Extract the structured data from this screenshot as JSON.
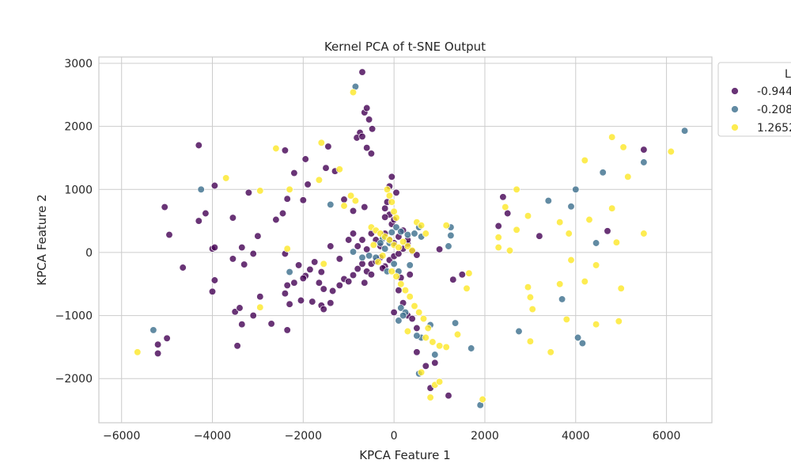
{
  "chart_data": {
    "type": "scatter",
    "title": "Kernel PCA of t-SNE Output",
    "xlabel": "KPCA Feature 1",
    "ylabel": "KPCA Feature 2",
    "xlim": [
      -6500,
      7000
    ],
    "ylim": [
      -2700,
      3100
    ],
    "xticks": [
      -6000,
      -4000,
      -2000,
      0,
      2000,
      4000,
      6000
    ],
    "xtick_labels": [
      "−6000",
      "−4000",
      "−2000",
      "0",
      "2000",
      "4000",
      "6000"
    ],
    "yticks": [
      -2000,
      -1000,
      0,
      1000,
      2000,
      3000
    ],
    "ytick_labels": [
      "−2000",
      "−1000",
      "0",
      "1000",
      "2000",
      "3000"
    ],
    "grid": true,
    "legend": {
      "title": "L",
      "placement": "top-right",
      "entries": [
        "-0.944",
        "-0.208",
        "1.2652"
      ]
    },
    "series": [
      {
        "name": "-0.944",
        "color": "#440154",
        "points": [
          [
            -700,
            2860
          ],
          [
            -650,
            2220
          ],
          [
            -600,
            2290
          ],
          [
            -550,
            2110
          ],
          [
            -750,
            1900
          ],
          [
            -820,
            1820
          ],
          [
            -700,
            1840
          ],
          [
            -600,
            1660
          ],
          [
            -500,
            1570
          ],
          [
            -480,
            1960
          ],
          [
            -4300,
            1700
          ],
          [
            -2400,
            1620
          ],
          [
            -1950,
            1480
          ],
          [
            -1450,
            1680
          ],
          [
            -2200,
            1260
          ],
          [
            -1500,
            1340
          ],
          [
            -1300,
            1290
          ],
          [
            -1900,
            1080
          ],
          [
            -3950,
            1060
          ],
          [
            -3200,
            950
          ],
          [
            -2350,
            850
          ],
          [
            -2000,
            830
          ],
          [
            -1100,
            840
          ],
          [
            -5050,
            720
          ],
          [
            -4150,
            620
          ],
          [
            -2450,
            620
          ],
          [
            -3550,
            550
          ],
          [
            -900,
            660
          ],
          [
            -650,
            720
          ],
          [
            -4300,
            500
          ],
          [
            -2600,
            520
          ],
          [
            -4950,
            280
          ],
          [
            -3000,
            260
          ],
          [
            -4000,
            60
          ],
          [
            -3950,
            80
          ],
          [
            -3350,
            80
          ],
          [
            -4650,
            -240
          ],
          [
            -3550,
            -100
          ],
          [
            -3300,
            -190
          ],
          [
            -3100,
            -20
          ],
          [
            -2400,
            -20
          ],
          [
            -2100,
            -200
          ],
          [
            -1950,
            -370
          ],
          [
            -1850,
            -270
          ],
          [
            -1750,
            -150
          ],
          [
            -1600,
            -310
          ],
          [
            -2200,
            -480
          ],
          [
            -2350,
            -520
          ],
          [
            -2000,
            -410
          ],
          [
            -1650,
            -480
          ],
          [
            -1550,
            -580
          ],
          [
            -1350,
            -610
          ],
          [
            -1200,
            -520
          ],
          [
            -1100,
            -420
          ],
          [
            -1000,
            -460
          ],
          [
            -900,
            -360
          ],
          [
            -800,
            -260
          ],
          [
            -700,
            -180
          ],
          [
            -600,
            -300
          ],
          [
            -500,
            -180
          ],
          [
            -400,
            -140
          ],
          [
            -300,
            -80
          ],
          [
            -200,
            -220
          ],
          [
            -100,
            -120
          ],
          [
            0,
            -60
          ],
          [
            100,
            -20
          ],
          [
            200,
            60
          ],
          [
            300,
            140
          ],
          [
            400,
            20
          ],
          [
            500,
            -40
          ],
          [
            -1400,
            100
          ],
          [
            -1200,
            -100
          ],
          [
            -1000,
            200
          ],
          [
            -900,
            300
          ],
          [
            -800,
            100
          ],
          [
            -700,
            200
          ],
          [
            -600,
            50
          ],
          [
            -500,
            300
          ],
          [
            -400,
            200
          ],
          [
            -300,
            100
          ],
          [
            -200,
            300
          ],
          [
            -100,
            200
          ],
          [
            0,
            150
          ],
          [
            100,
            250
          ],
          [
            200,
            350
          ],
          [
            300,
            200
          ],
          [
            -3950,
            -440
          ],
          [
            -4000,
            -620
          ],
          [
            -2950,
            -700
          ],
          [
            -2400,
            -650
          ],
          [
            -2300,
            -820
          ],
          [
            -2050,
            -760
          ],
          [
            -1800,
            -780
          ],
          [
            -1600,
            -840
          ],
          [
            -1400,
            -800
          ],
          [
            -1550,
            -900
          ],
          [
            -3500,
            -940
          ],
          [
            -3400,
            -880
          ],
          [
            -3350,
            -1140
          ],
          [
            -3100,
            -1000
          ],
          [
            -2700,
            -1130
          ],
          [
            -2350,
            -1230
          ],
          [
            -3450,
            -1480
          ],
          [
            -5000,
            -1360
          ],
          [
            -5200,
            -1460
          ],
          [
            -5200,
            -1600
          ],
          [
            -200,
            700
          ],
          [
            -150,
            800
          ],
          [
            -100,
            600
          ],
          [
            -50,
            450
          ],
          [
            0,
            520
          ],
          [
            -200,
            560
          ],
          [
            100,
            -600
          ],
          [
            200,
            -800
          ],
          [
            300,
            -1000
          ],
          [
            400,
            -1050
          ],
          [
            500,
            -1200
          ],
          [
            500,
            -1580
          ],
          [
            700,
            -1800
          ],
          [
            900,
            -1750
          ],
          [
            800,
            -2150
          ],
          [
            1200,
            -2270
          ],
          [
            1000,
            50
          ],
          [
            1300,
            -430
          ],
          [
            1500,
            -350
          ],
          [
            3200,
            260
          ],
          [
            2500,
            620
          ],
          [
            2400,
            880
          ],
          [
            2300,
            420
          ],
          [
            4700,
            340
          ],
          [
            5500,
            1630
          ],
          [
            -650,
            -480
          ],
          [
            -500,
            -350
          ],
          [
            -250,
            -250
          ],
          [
            150,
            -400
          ],
          [
            350,
            -350
          ],
          [
            0,
            -950
          ],
          [
            -100,
            1050
          ],
          [
            -50,
            1200
          ],
          [
            50,
            950
          ]
        ]
      },
      {
        "name": "-0.208",
        "color": "#3b6e8c",
        "points": [
          [
            -850,
            2630
          ],
          [
            -4250,
            1000
          ],
          [
            -1400,
            760
          ],
          [
            -2300,
            -310
          ],
          [
            -5300,
            -1230
          ],
          [
            -400,
            -80
          ],
          [
            -150,
            -300
          ],
          [
            -50,
            320
          ],
          [
            50,
            400
          ],
          [
            150,
            330
          ],
          [
            300,
            280
          ],
          [
            450,
            300
          ],
          [
            550,
            400
          ],
          [
            600,
            250
          ],
          [
            -250,
            220
          ],
          [
            -300,
            150
          ],
          [
            -200,
            60
          ],
          [
            -100,
            150
          ],
          [
            0,
            -180
          ],
          [
            100,
            -300
          ],
          [
            150,
            -880
          ],
          [
            250,
            -950
          ],
          [
            200,
            -1000
          ],
          [
            100,
            -1080
          ],
          [
            600,
            -1350
          ],
          [
            800,
            -1150
          ],
          [
            500,
            -1320
          ],
          [
            550,
            -1920
          ],
          [
            900,
            -1620
          ],
          [
            1350,
            -1120
          ],
          [
            1700,
            -1520
          ],
          [
            1200,
            100
          ],
          [
            1250,
            270
          ],
          [
            1250,
            400
          ],
          [
            1900,
            -2420
          ],
          [
            2750,
            -1250
          ],
          [
            3400,
            820
          ],
          [
            3700,
            -740
          ],
          [
            3900,
            730
          ],
          [
            4000,
            1000
          ],
          [
            4450,
            150
          ],
          [
            4050,
            -1350
          ],
          [
            4150,
            -1440
          ],
          [
            4600,
            1270
          ],
          [
            5500,
            1430
          ],
          [
            6400,
            1930
          ],
          [
            -700,
            -80
          ],
          [
            -900,
            10
          ],
          [
            -550,
            -50
          ],
          [
            350,
            -200
          ]
        ]
      },
      {
        "name": "1.2652",
        "color": "#fde725",
        "points": [
          [
            -900,
            2540
          ],
          [
            -2600,
            1650
          ],
          [
            -1600,
            1740
          ],
          [
            -1650,
            1150
          ],
          [
            -3700,
            1180
          ],
          [
            -2950,
            980
          ],
          [
            -2300,
            1000
          ],
          [
            -1200,
            1320
          ],
          [
            -950,
            900
          ],
          [
            -850,
            820
          ],
          [
            -1100,
            740
          ],
          [
            -2350,
            60
          ],
          [
            -1550,
            -180
          ],
          [
            -2950,
            -870
          ],
          [
            -5650,
            -1580
          ],
          [
            -500,
            400
          ],
          [
            -400,
            350
          ],
          [
            -300,
            300
          ],
          [
            -200,
            250
          ],
          [
            -100,
            200
          ],
          [
            0,
            120
          ],
          [
            100,
            80
          ],
          [
            200,
            170
          ],
          [
            300,
            100
          ],
          [
            400,
            30
          ],
          [
            500,
            480
          ],
          [
            600,
            430
          ],
          [
            700,
            300
          ],
          [
            -50,
            -300
          ],
          [
            50,
            -380
          ],
          [
            150,
            -500
          ],
          [
            250,
            -600
          ],
          [
            350,
            -700
          ],
          [
            450,
            -850
          ],
          [
            550,
            -950
          ],
          [
            650,
            -1050
          ],
          [
            750,
            -1200
          ],
          [
            850,
            -1420
          ],
          [
            1000,
            -1480
          ],
          [
            1150,
            -1500
          ],
          [
            300,
            -1250
          ],
          [
            700,
            -1350
          ],
          [
            600,
            -1900
          ],
          [
            800,
            -2300
          ],
          [
            900,
            -2100
          ],
          [
            1000,
            -2050
          ],
          [
            1400,
            -1300
          ],
          [
            1600,
            -570
          ],
          [
            1650,
            -330
          ],
          [
            1150,
            430
          ],
          [
            1950,
            -2330
          ],
          [
            2300,
            240
          ],
          [
            2300,
            80
          ],
          [
            2450,
            720
          ],
          [
            2550,
            30
          ],
          [
            2700,
            360
          ],
          [
            2700,
            1000
          ],
          [
            2950,
            580
          ],
          [
            2950,
            -550
          ],
          [
            3000,
            -710
          ],
          [
            3050,
            -900
          ],
          [
            3000,
            -1410
          ],
          [
            3450,
            -1580
          ],
          [
            3650,
            480
          ],
          [
            3650,
            -500
          ],
          [
            3800,
            -1060
          ],
          [
            3850,
            300
          ],
          [
            3900,
            -120
          ],
          [
            4200,
            1460
          ],
          [
            4200,
            -460
          ],
          [
            4300,
            520
          ],
          [
            4450,
            -200
          ],
          [
            4450,
            -1140
          ],
          [
            4800,
            1830
          ],
          [
            4800,
            700
          ],
          [
            4900,
            160
          ],
          [
            4950,
            -1090
          ],
          [
            5000,
            -570
          ],
          [
            5050,
            1670
          ],
          [
            5150,
            1200
          ],
          [
            5500,
            300
          ],
          [
            6100,
            1600
          ],
          [
            -150,
            1000
          ],
          [
            -100,
            900
          ],
          [
            -50,
            800
          ],
          [
            0,
            650
          ],
          [
            50,
            550
          ],
          [
            -250,
            -50
          ],
          [
            -350,
            -150
          ],
          [
            -450,
            120
          ]
        ]
      }
    ]
  }
}
